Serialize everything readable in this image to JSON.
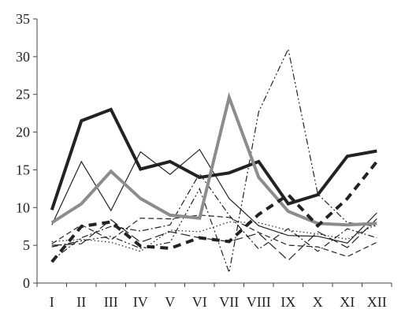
{
  "chart_data": {
    "type": "line",
    "categories": [
      "I",
      "II",
      "III",
      "IV",
      "V",
      "VI",
      "VII",
      "VIII",
      "IX",
      "X",
      "XI",
      "XII"
    ],
    "ylim": [
      0,
      35
    ],
    "y_ticks": [
      0,
      5,
      10,
      15,
      20,
      25,
      30,
      35
    ],
    "grid": false,
    "legend": "none",
    "series": [
      {
        "values": [
          9.7,
          21.5,
          23.0,
          15.1,
          16.1,
          14.0,
          14.6,
          16.1,
          10.5,
          11.7,
          16.8,
          17.5
        ],
        "color": "#222222",
        "dash": "solid",
        "weight": "heavy"
      },
      {
        "values": [
          8.0,
          10.5,
          14.8,
          11.2,
          9.0,
          8.6,
          24.6,
          14.0,
          9.5,
          7.9,
          7.7,
          7.9
        ],
        "color": "#8c8c8c",
        "dash": "solid",
        "weight": "heavy"
      },
      {
        "values": [
          2.8,
          7.5,
          8.1,
          4.9,
          4.6,
          6.0,
          5.5,
          9.1,
          11.7,
          7.6,
          11.2,
          16.1
        ],
        "color": "#222222",
        "dash": "dashed",
        "weight": "heavy"
      },
      {
        "values": [
          7.7,
          16.1,
          9.6,
          17.4,
          14.4,
          17.7,
          11.2,
          7.6,
          6.3,
          6.2,
          5.3,
          9.3
        ],
        "color": "#222222",
        "dash": "solid",
        "weight": "thin"
      },
      {
        "values": [
          3.0,
          6.0,
          7.5,
          6.9,
          7.7,
          14.5,
          9.0,
          4.5,
          7.2,
          4.2,
          7.2,
          6.0
        ],
        "color": "#222222",
        "dash": "dash-dot",
        "weight": "thin"
      },
      {
        "values": [
          4.8,
          5.6,
          6.2,
          4.6,
          5.4,
          12.5,
          1.4,
          22.7,
          31.0,
          11.8,
          8.0,
          7.5
        ],
        "color": "#222222",
        "dash": "dash-dot-dot",
        "weight": "thin"
      },
      {
        "values": [
          5.2,
          7.7,
          5.7,
          8.6,
          8.5,
          9.0,
          8.7,
          6.7,
          5.0,
          4.8,
          3.5,
          5.4
        ],
        "color": "#222222",
        "dash": "dash",
        "weight": "thin"
      },
      {
        "values": [
          5.5,
          5.8,
          5.4,
          4.2,
          7.0,
          6.8,
          8.1,
          8.0,
          7.0,
          6.5,
          5.8,
          7.8
        ],
        "color": "#222222",
        "dash": "dotted",
        "weight": "thin"
      },
      {
        "values": [
          5.0,
          5.2,
          8.4,
          5.4,
          6.8,
          6.0,
          5.5,
          6.6,
          3.0,
          6.8,
          4.7,
          8.5
        ],
        "color": "#222222",
        "dash": "long-dash",
        "weight": "thin"
      }
    ]
  }
}
